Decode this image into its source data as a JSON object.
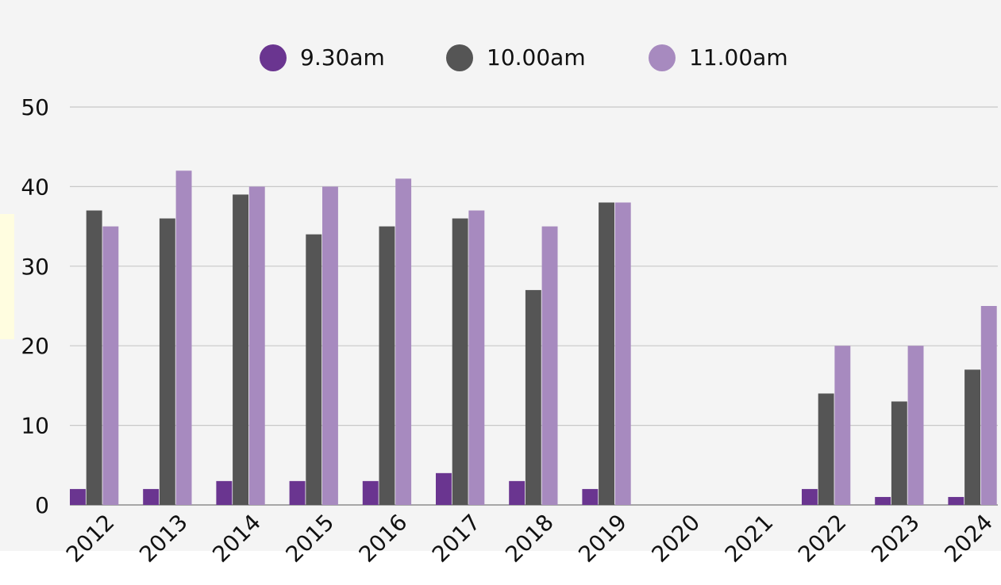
{
  "chart_data": {
    "type": "bar",
    "categories": [
      "2012",
      "2013",
      "2014",
      "2015",
      "2016",
      "2017",
      "2018",
      "2019",
      "2020",
      "2021",
      "2022",
      "2023",
      "2024"
    ],
    "series": [
      {
        "name": "9.30am",
        "color": "#6a3590",
        "values": [
          2,
          2,
          3,
          3,
          3,
          4,
          3,
          2,
          null,
          null,
          2,
          1,
          1
        ]
      },
      {
        "name": "10.00am",
        "color": "#555555",
        "values": [
          37,
          36,
          39,
          34,
          35,
          36,
          27,
          38,
          null,
          null,
          14,
          13,
          17
        ]
      },
      {
        "name": "11.00am",
        "color": "#a78abf",
        "values": [
          35,
          42,
          40,
          40,
          41,
          37,
          35,
          38,
          null,
          null,
          20,
          20,
          25
        ]
      }
    ],
    "ylim": [
      0,
      50
    ],
    "yticks": [
      0,
      10,
      20,
      30,
      40,
      50
    ],
    "grid": true,
    "legend": "top"
  }
}
